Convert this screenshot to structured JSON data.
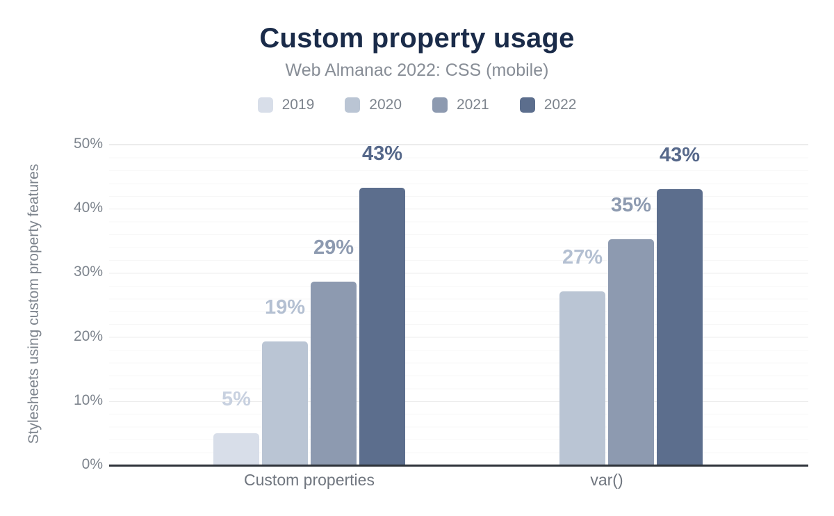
{
  "chart_data": {
    "type": "bar",
    "title": "Custom property usage",
    "subtitle": "Web Almanac 2022: CSS (mobile)",
    "ylabel": "Stylesheets using custom property features",
    "xlabel": "",
    "ylim": [
      0,
      50
    ],
    "ytick_labels": [
      "0%",
      "10%",
      "20%",
      "30%",
      "40%",
      "50%"
    ],
    "grid": {
      "major_step_pct": 10,
      "minor_step_pct": 2,
      "visible": true
    },
    "legend_position": "top",
    "categories": [
      "Custom properties",
      "var()"
    ],
    "series": [
      {
        "name": "2019",
        "color": "#d8dee9",
        "label_color": "#c8d1e0",
        "values": [
          5.0,
          null
        ],
        "data_labels": [
          "5%",
          null
        ]
      },
      {
        "name": "2020",
        "color": "#bac5d4",
        "label_color": "#b4c0d2",
        "values": [
          19.3,
          27.1
        ],
        "data_labels": [
          "19%",
          "27%"
        ]
      },
      {
        "name": "2021",
        "color": "#8d9ab0",
        "label_color": "#8d9ab0",
        "values": [
          28.6,
          35.3
        ],
        "data_labels": [
          "29%",
          "35%"
        ]
      },
      {
        "name": "2022",
        "color": "#5c6e8d",
        "label_color": "#56688a",
        "values": [
          43.3,
          43.1
        ],
        "data_labels": [
          "43%",
          "43%"
        ]
      }
    ]
  },
  "colors": {
    "title": "#1a2b49",
    "subtitle": "#878d96",
    "axis_text": "#7d848d",
    "category_text": "#70767f",
    "baseline": "#2e333a",
    "gridline_major": "#ececec",
    "gridline_minor": "#f7f7f7",
    "background": "#ffffff"
  }
}
